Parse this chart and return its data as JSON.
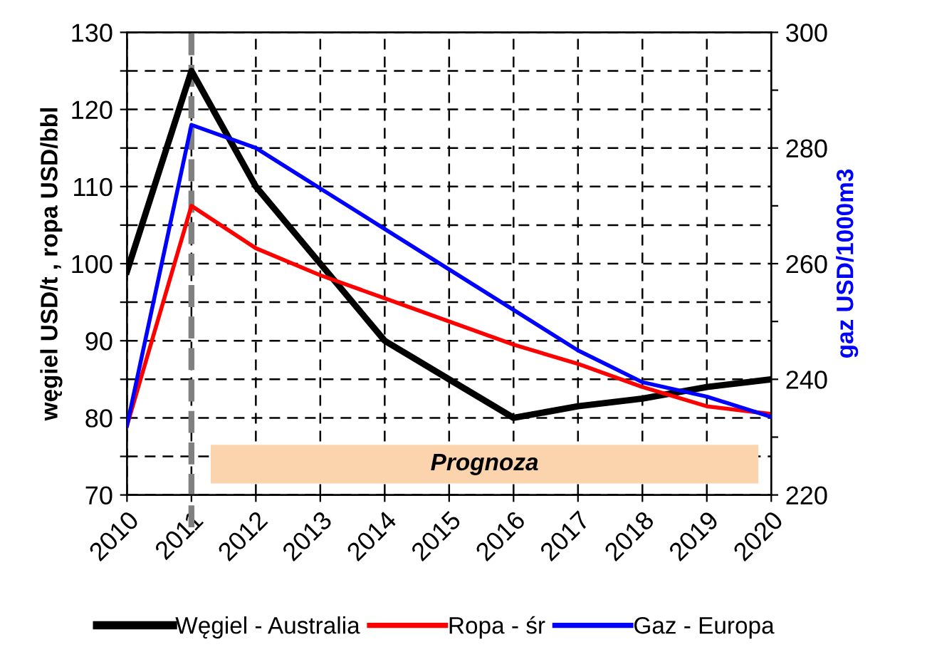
{
  "chart_data": {
    "type": "line",
    "ylabel": "węgiel USD/t , ropa USD/bbl",
    "y2label": "gaz USD/1000m3",
    "x": [
      2010,
      2011,
      2012,
      2013,
      2014,
      2015,
      2016,
      2017,
      2018,
      2019,
      2020
    ],
    "series": [
      {
        "name": "Węgiel - Australia",
        "color": "#000000",
        "values": [
          99,
          125,
          110,
          100,
          90,
          85,
          80,
          81.5,
          82.5,
          84,
          85
        ]
      },
      {
        "name": "Ropa - śr",
        "color": "#ff0000",
        "values": [
          79,
          107.5,
          102,
          98.5,
          95.5,
          92.5,
          89.5,
          87,
          84,
          81.5,
          80.5
        ]
      },
      {
        "name": "Gaz - Europa",
        "color": "#0000ff",
        "axis": "y2",
        "values": [
          232,
          284,
          280,
          273,
          266,
          259,
          252,
          245,
          239.5,
          237,
          233.5
        ]
      }
    ],
    "xlim": [
      2010,
      2020
    ],
    "xticks": [
      2010,
      2011,
      2012,
      2013,
      2014,
      2015,
      2016,
      2017,
      2018,
      2019,
      2020
    ],
    "ylim": [
      70,
      130
    ],
    "yticks": [
      70,
      {
        "value": 75,
        "label": null
      },
      80,
      {
        "value": 85,
        "label": null
      },
      90,
      {
        "value": 95,
        "label": null
      },
      100,
      {
        "value": 105,
        "label": null
      },
      110,
      {
        "value": 115,
        "label": null
      },
      120,
      {
        "value": 125,
        "label": null
      },
      130
    ],
    "y2lim": [
      220,
      300
    ],
    "y2ticks": [
      220,
      {
        "value": 230,
        "label": null
      },
      240,
      {
        "value": 250,
        "label": null
      },
      260,
      {
        "value": 270,
        "label": null
      },
      280,
      {
        "value": 290,
        "label": null
      },
      300
    ],
    "ref_lines": [
      {
        "axis": "x",
        "value": 2011,
        "color": "#808080",
        "line_style": "dashed"
      }
    ],
    "bands": [
      {
        "axis": "x",
        "from": 2011.3,
        "to": 2019.8,
        "label": "Prognoza",
        "color": "#fbd3ac"
      }
    ],
    "grid": true,
    "legend": "bottom",
    "marker": "none",
    "line_style": "solid"
  }
}
